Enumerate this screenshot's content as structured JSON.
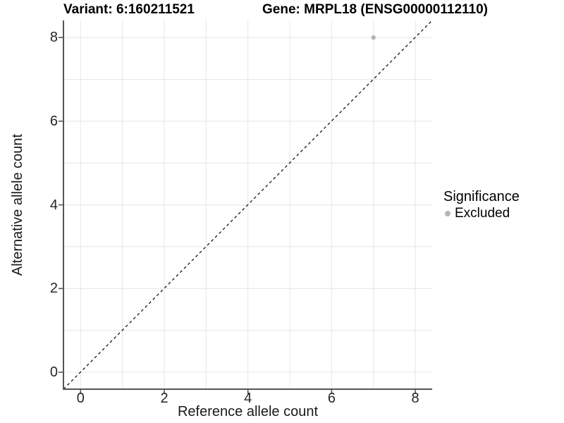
{
  "header": {
    "title_left": "Variant: 6:160211521",
    "title_right": "Gene: MRPL18 (ENSG00000112110)"
  },
  "chart_data": {
    "type": "scatter",
    "title": "Variant: 6:160211521 | Gene: MRPL18 (ENSG00000112110)",
    "xlabel": "Reference allele count",
    "ylabel": "Alternative allele count",
    "xlim": [
      -0.4,
      8.4
    ],
    "ylim": [
      -0.4,
      8.4
    ],
    "xticks": [
      0,
      2,
      4,
      6,
      8
    ],
    "yticks": [
      0,
      2,
      4,
      6,
      8
    ],
    "grid": "light gray gridlines at every integer from 0 to 8 on both axes",
    "reference_line": {
      "type": "identity y=x",
      "style": "dashed",
      "color": "#000000"
    },
    "series": [
      {
        "name": "Excluded",
        "color": "#b5b5b5",
        "points": [
          {
            "x": 7,
            "y": 8
          }
        ]
      }
    ],
    "legend": {
      "title": "Significance",
      "position": "right",
      "items": [
        {
          "label": "Excluded",
          "color": "#b5b5b5"
        }
      ]
    }
  },
  "colors": {
    "background": "#ffffff",
    "grid": "#e8e8e8",
    "axis": "#555555",
    "tick_text": "#262626",
    "title_text": "#000000"
  }
}
